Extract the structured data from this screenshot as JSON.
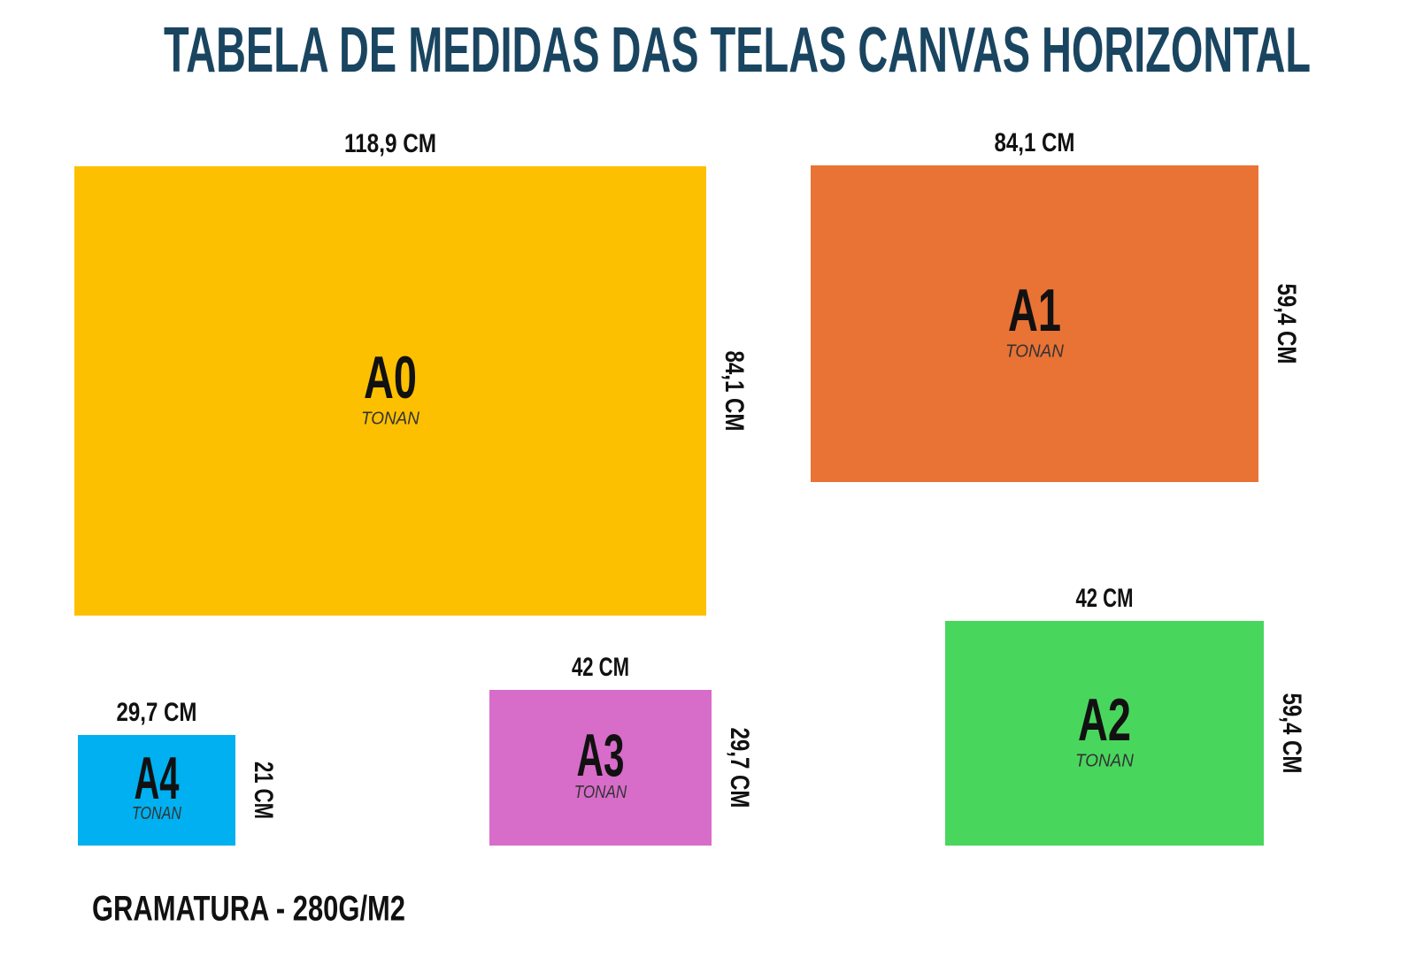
{
  "header": {
    "title": "TABELA DE MEDIDAS DAS TELAS CANVAS HORIZONTAL"
  },
  "sheets": [
    {
      "name": "A0",
      "brand": "TONAN",
      "width": "118,9 CM",
      "height": "84,1 CM",
      "color": "#fdc000"
    },
    {
      "name": "A1",
      "brand": "TONAN",
      "width": "84,1 CM",
      "height": "59,4 CM",
      "color": "#e97235"
    },
    {
      "name": "A2",
      "brand": "TONAN",
      "width": "42 CM",
      "height": "59,4 CM",
      "color": "#49d65d"
    },
    {
      "name": "A3",
      "brand": "TONAN",
      "width": "42 CM",
      "height": "29,7 CM",
      "color": "#d76cc9"
    },
    {
      "name": "A4",
      "brand": "TONAN",
      "width": "29,7 CM",
      "height": "21 CM",
      "color": "#00b0f0"
    }
  ],
  "footer": "GRAMATURA - 280G/M2"
}
